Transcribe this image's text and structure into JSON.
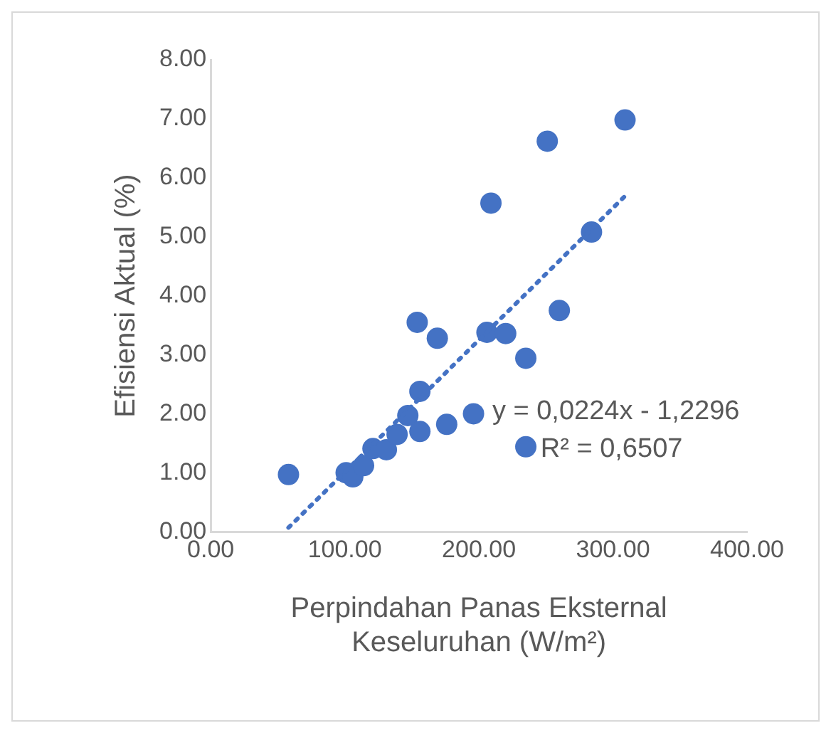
{
  "chart_data": {
    "type": "scatter",
    "xlabel": "Perpindahan Panas Eksternal Keseluruhan (W/m²)",
    "ylabel": "Efisiensi Aktual (%)",
    "xlim": [
      0,
      400
    ],
    "xticks": [
      {
        "value": 0,
        "label": "0.00"
      },
      {
        "value": 100,
        "label": "100.00"
      },
      {
        "value": 200,
        "label": "200.00"
      },
      {
        "value": 300,
        "label": "300.00"
      },
      {
        "value": 400,
        "label": "400.00"
      }
    ],
    "ylim": [
      0,
      8
    ],
    "yticks": [
      {
        "value": 0,
        "label": "0.00"
      },
      {
        "value": 1,
        "label": "1.00"
      },
      {
        "value": 2,
        "label": "2.00"
      },
      {
        "value": 3,
        "label": "3.00"
      },
      {
        "value": 4,
        "label": "4.00"
      },
      {
        "value": 5,
        "label": "5.00"
      },
      {
        "value": 6,
        "label": "6.00"
      },
      {
        "value": 7,
        "label": "7.00"
      },
      {
        "value": 8,
        "label": "8.00"
      }
    ],
    "grid": false,
    "legend": false,
    "marker": "circle",
    "series": [
      {
        "type": "scatter",
        "color": "#4472c4",
        "x": [
          58,
          101,
          106,
          114,
          121,
          131,
          139,
          147,
          156,
          156,
          154,
          169,
          176,
          196,
          206,
          220,
          235,
          235,
          209,
          260,
          251,
          284,
          309
        ],
        "values": [
          0.97,
          1.0,
          0.93,
          1.12,
          1.41,
          1.39,
          1.65,
          1.97,
          1.7,
          2.38,
          3.55,
          3.28,
          1.82,
          2.0,
          3.38,
          3.36,
          2.94,
          1.44,
          5.57,
          3.75,
          6.62,
          5.08,
          6.98
        ]
      },
      {
        "type": "line",
        "color": "#4472c4",
        "line_style": "dotted",
        "marker": "none",
        "x": [
          58,
          309
        ],
        "values": [
          0.07,
          5.69
        ]
      }
    ],
    "annotations": [
      "y = 0,0224x - 1,2296",
      "R² = 0,6507"
    ]
  }
}
